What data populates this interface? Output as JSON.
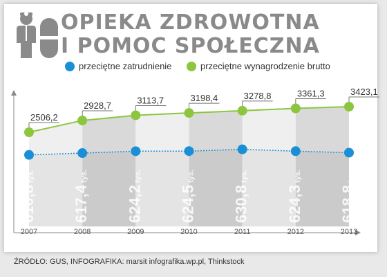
{
  "header": {
    "title_line1": "OPIEKA ZDROWOTNA",
    "title_line2": "I POMOC SPOŁECZNA"
  },
  "legend": {
    "employment_label": "przeciętne zatrudnienie",
    "wage_label": "przeciętne wynagrodzenie brutto",
    "employment_color": "#1a8fd6",
    "wage_color": "#8cc63f"
  },
  "footer": {
    "source": "ŹRÓDŁO: GUS, INFOGRAFIKA: marsit infografika.wp.pl, Thinkstock"
  },
  "chart_data": {
    "type": "line",
    "categories": [
      "2007",
      "2008",
      "2009",
      "2010",
      "2011",
      "2012",
      "2013"
    ],
    "series": [
      {
        "name": "przeciętne wynagrodzenie brutto",
        "values": [
          2506.2,
          2928.7,
          3113.7,
          3198.4,
          3278.8,
          3361.3,
          3423.1
        ],
        "labels": [
          "2506,2",
          "2928,7",
          "3113,7",
          "3198,4",
          "3278,8",
          "3361,3",
          "3423,1"
        ],
        "color": "#8cc63f"
      },
      {
        "name": "przeciętne zatrudnienie",
        "values": [
          610.8,
          617.4,
          624.2,
          624.5,
          630.8,
          624.3,
          618.8
        ],
        "labels": [
          "610,8",
          "617,4",
          "624,2",
          "624,5",
          "630,8",
          "624,3",
          "618,8"
        ],
        "unit": "tys.",
        "color": "#1a8fd6"
      }
    ],
    "grid": false
  }
}
